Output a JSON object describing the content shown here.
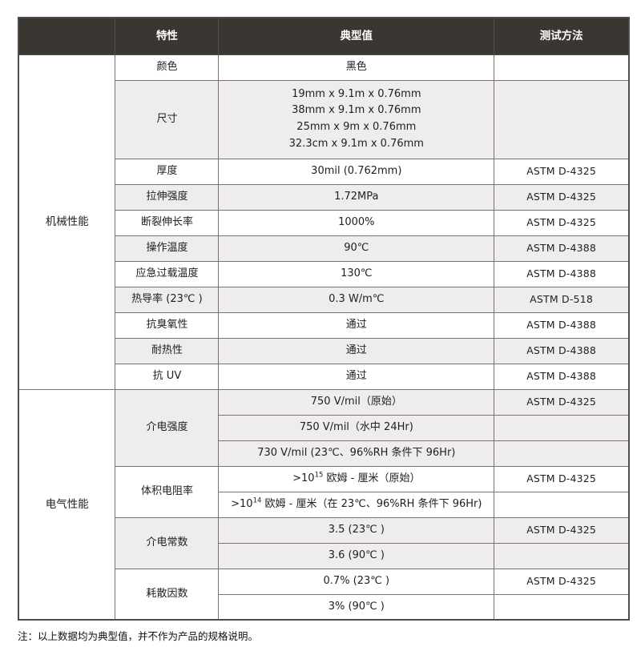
{
  "table": {
    "header": {
      "feature": "特性",
      "typical": "典型值",
      "method": "测试方法"
    },
    "sections": [
      {
        "group": "机械性能",
        "rows": [
          {
            "feature": "颜色",
            "value": "黑色",
            "method": ""
          },
          {
            "feature": "尺寸",
            "value": "19mm x 9.1m x 0.76mm\n38mm x 9.1m x 0.76mm\n25mm x 9m x 0.76mm\n32.3cm x 9.1m x 0.76mm",
            "method": ""
          },
          {
            "feature": "厚度",
            "value": "30mil (0.762mm)",
            "method": "ASTM D-4325"
          },
          {
            "feature": "拉伸强度",
            "value": "1.72MPa",
            "method": "ASTM D-4325"
          },
          {
            "feature": "断裂伸长率",
            "value": "1000%",
            "method": "ASTM D-4325"
          },
          {
            "feature": "操作温度",
            "value": "90℃",
            "method": "ASTM D-4388"
          },
          {
            "feature": "应急过载温度",
            "value": "130℃",
            "method": "ASTM D-4388"
          },
          {
            "feature": "热导率 (23℃ )",
            "value": "0.3 W/m℃",
            "method": "ASTM D-518"
          },
          {
            "feature": "抗臭氧性",
            "value": "通过",
            "method": "ASTM D-4388"
          },
          {
            "feature": "耐热性",
            "value": "通过",
            "method": "ASTM D-4388"
          },
          {
            "feature": "抗 UV",
            "value": "通过",
            "method": "ASTM D-4388"
          }
        ]
      },
      {
        "group": "电气性能",
        "rows": [
          {
            "feature": "介电强度",
            "value": "750 V/mil（原始）",
            "method": "ASTM D-4325"
          },
          {
            "value": "750 V/mil（水中 24Hr)",
            "method": ""
          },
          {
            "value": "730 V/mil (23℃、96%RH 条件下 96Hr)",
            "method": ""
          },
          {
            "feature": "体积电阻率",
            "pre": ">10",
            "sup": "15",
            "post": " 欧姆 - 厘米（原始）",
            "method": "ASTM D-4325"
          },
          {
            "pre": ">10",
            "sup": "14",
            "post": " 欧姆 - 厘米（在 23℃、96%RH 条件下 96Hr)",
            "method": ""
          },
          {
            "feature": "介电常数",
            "value": "3.5 (23℃ )",
            "method": "ASTM D-4325"
          },
          {
            "value": "3.6 (90℃ )",
            "method": ""
          },
          {
            "feature": "耗散因数",
            "value": "0.7% (23℃ )",
            "method": "ASTM D-4325"
          },
          {
            "value": "3% (90℃ )",
            "method": ""
          }
        ]
      }
    ],
    "note": "注：以上数据均为典型值，并不作为产品的规格说明。"
  },
  "colors": {
    "header_bg": "#3a3632",
    "row_alt_bg": "#eeedeb",
    "border": "#767170",
    "outer_border": "#4e4a46",
    "rule": "#b5b3b1"
  }
}
